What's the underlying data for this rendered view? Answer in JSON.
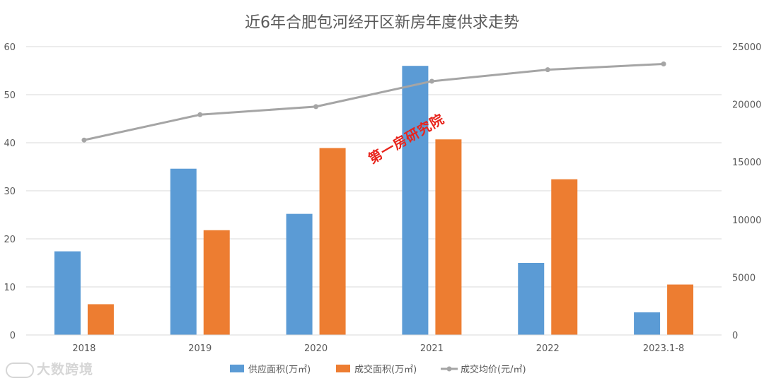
{
  "chart_data": {
    "type": "bar",
    "title": "近6年合肥包河经开区新房年度供求走势",
    "categories": [
      "2018",
      "2019",
      "2020",
      "2021",
      "2022",
      "2023.1-8"
    ],
    "series": [
      {
        "name": "供应面积(万㎡)",
        "type": "bar",
        "axis": "left",
        "color": "#5b9bd5",
        "values": [
          17.4,
          34.6,
          25.2,
          56.0,
          15.0,
          4.7
        ]
      },
      {
        "name": "成交面积(万㎡)",
        "type": "bar",
        "axis": "left",
        "color": "#ed7d31",
        "values": [
          6.4,
          21.8,
          38.9,
          40.7,
          32.4,
          10.5
        ]
      },
      {
        "name": "成交均价(元/㎡)",
        "type": "line",
        "axis": "right",
        "color": "#a5a5a5",
        "values": [
          16900,
          19100,
          19800,
          22000,
          23000,
          23500
        ]
      }
    ],
    "y_left": {
      "ylim": [
        0,
        60
      ],
      "ticks": [
        "0",
        "10",
        "20",
        "30",
        "40",
        "50",
        "60"
      ]
    },
    "y_right": {
      "ylim": [
        0,
        25000
      ],
      "ticks": [
        "0",
        "5000",
        "10000",
        "15000",
        "20000",
        "25000"
      ]
    },
    "grid": true,
    "legend_position": "bottom"
  },
  "watermark": "第一房研究院",
  "brand": "大数跨境"
}
